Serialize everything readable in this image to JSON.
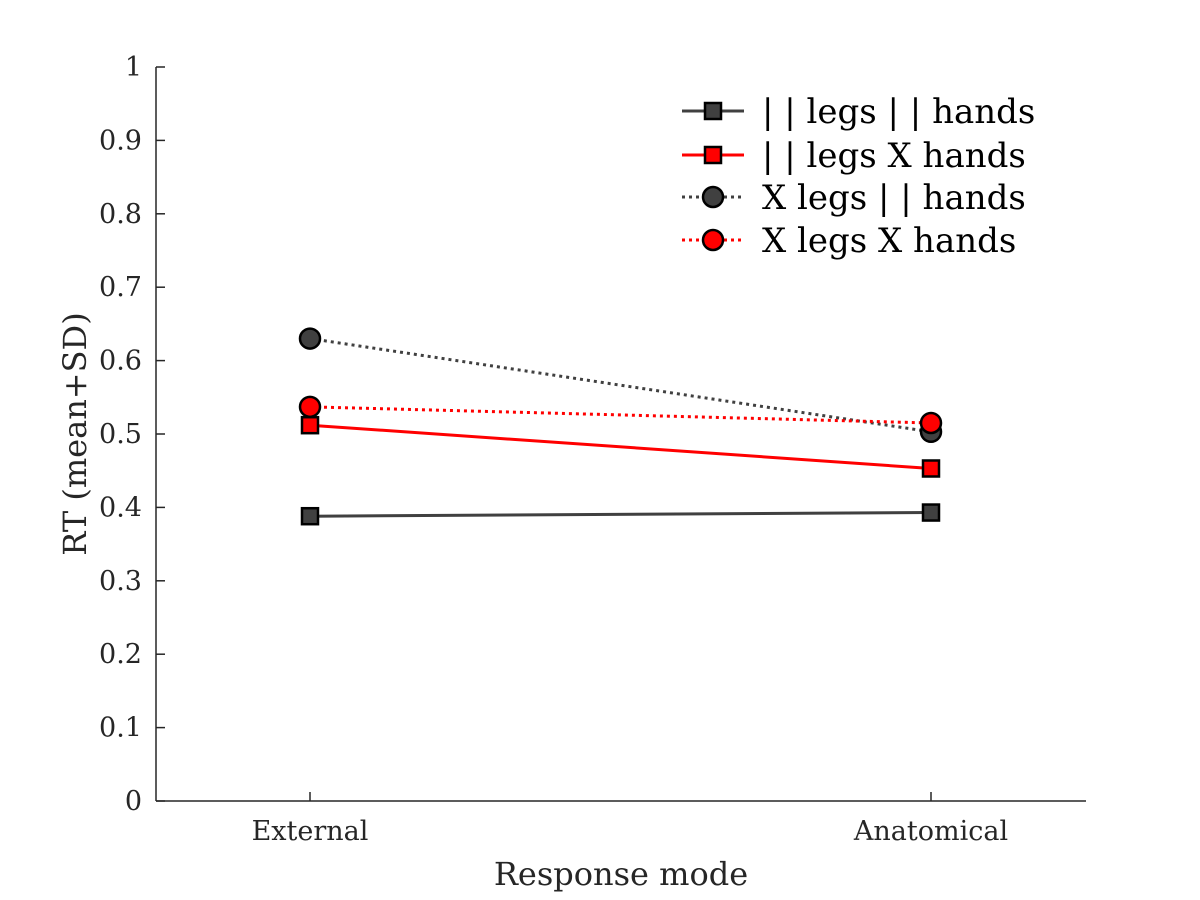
{
  "chart_data": {
    "type": "line",
    "title": "",
    "xlabel": "Response mode",
    "ylabel": "RT (mean+SD)",
    "categories": [
      "External",
      "Anatomical"
    ],
    "ylim": [
      0,
      1
    ],
    "yticks": [
      "0",
      "0.1",
      "0.2",
      "0.3",
      "0.4",
      "0.5",
      "0.6",
      "0.7",
      "0.8",
      "0.9",
      "1"
    ],
    "grid": false,
    "legend_position": "top-right",
    "series": [
      {
        "name": "| | legs  | | hands",
        "values": [
          0.388,
          0.393
        ],
        "color": "#404040",
        "line_style": "solid",
        "marker": "square"
      },
      {
        "name": "| | legs  X hands",
        "values": [
          0.512,
          0.453
        ],
        "color": "#ff0000",
        "line_style": "solid",
        "marker": "square"
      },
      {
        "name": "X legs  | | hands",
        "values": [
          0.63,
          0.503
        ],
        "color": "#404040",
        "line_style": "dotted",
        "marker": "circle"
      },
      {
        "name": "X legs  X hands",
        "values": [
          0.537,
          0.515
        ],
        "color": "#ff0000",
        "line_style": "dotted",
        "marker": "circle"
      }
    ]
  }
}
